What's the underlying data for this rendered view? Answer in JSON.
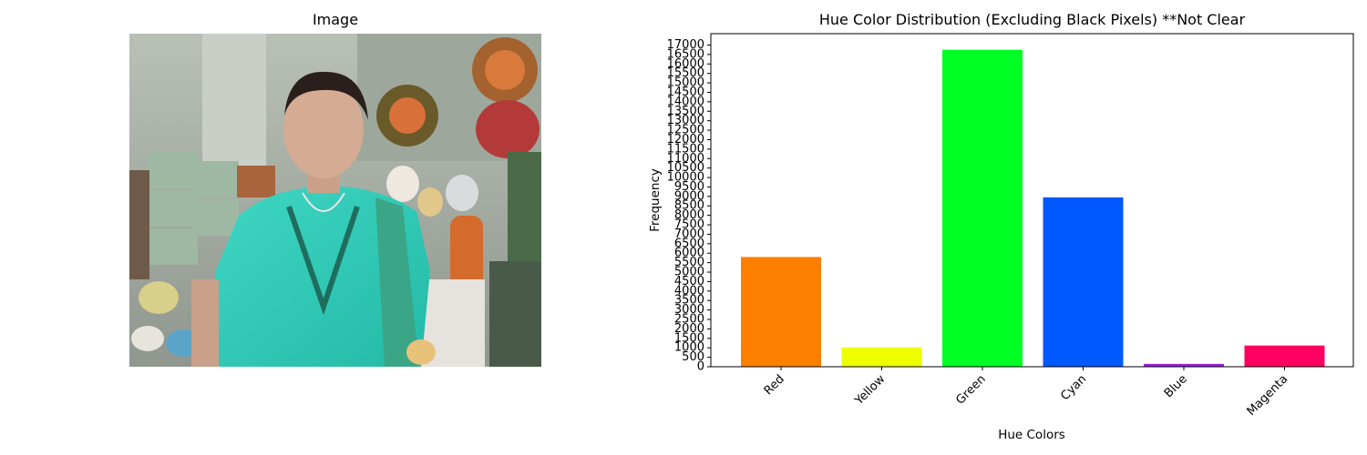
{
  "image_panel": {
    "title": "Image"
  },
  "chart_data": {
    "type": "bar",
    "title": "Hue Color Distribution (Excluding Black Pixels) **Not Clear",
    "xlabel": "Hue Colors",
    "ylabel": "Frequency",
    "categories": [
      "Red",
      "Yellow",
      "Green",
      "Cyan",
      "Blue",
      "Magenta"
    ],
    "values": [
      5800,
      1020,
      16750,
      8950,
      150,
      1120
    ],
    "colors": [
      "#ff7f00",
      "#eeff00",
      "#00ff22",
      "#0058ff",
      "#9a1fe0",
      "#ff0060"
    ],
    "ylim": [
      0,
      17600
    ],
    "yticks": [
      0,
      500,
      1000,
      1500,
      2000,
      2500,
      3000,
      3500,
      4000,
      4500,
      5000,
      5500,
      6000,
      6500,
      7000,
      7500,
      8000,
      8500,
      9000,
      9500,
      10000,
      10500,
      11000,
      11500,
      12000,
      12500,
      13000,
      13500,
      14000,
      14500,
      15000,
      15500,
      16000,
      16500,
      17000
    ],
    "grid": false,
    "legend": "none"
  }
}
